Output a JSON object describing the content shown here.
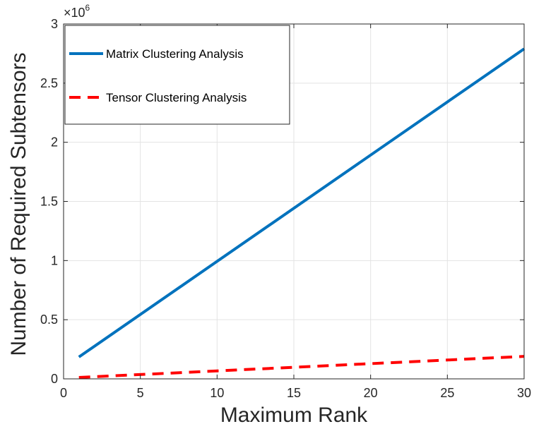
{
  "chart_data": {
    "type": "line",
    "xlabel": "Maximum Rank",
    "ylabel": "Number of Required Subtensors",
    "xlim": [
      0,
      30
    ],
    "ylim": [
      0,
      3
    ],
    "xticks": [
      "0",
      "5",
      "10",
      "15",
      "20",
      "25",
      "30"
    ],
    "yticks": [
      "0",
      "0.5",
      "1",
      "1.5",
      "2",
      "2.5",
      "3"
    ],
    "y_exponent_prefix": "×10",
    "y_exponent_power": "6",
    "grid": true,
    "legend_position": "top-left",
    "series": [
      {
        "name": "Matrix Clustering Analysis",
        "color": "#0072BD",
        "style": "solid",
        "x": [
          1,
          30
        ],
        "y": [
          0.185,
          2.79
        ]
      },
      {
        "name": "Tensor Clustering Analysis",
        "color": "#FF0000",
        "style": "dashed",
        "x": [
          1,
          30
        ],
        "y": [
          0.012,
          0.19
        ]
      }
    ]
  }
}
